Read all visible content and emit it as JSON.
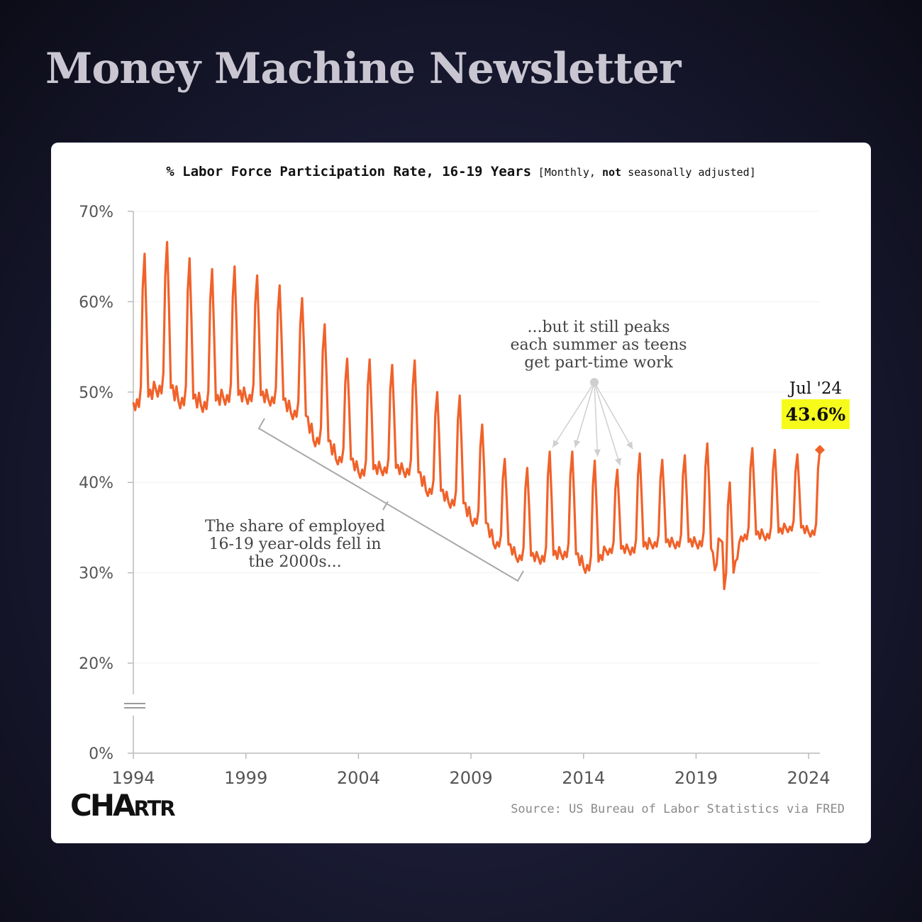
{
  "header": {
    "brand_title": "Money Machine Newsletter"
  },
  "chart_data": {
    "type": "line",
    "title": "% Labor Force Participation Rate, 16-19 Years",
    "subtitle_parts": {
      "open": "[Monthly, ",
      "bold": "not",
      "close": " seasonally adjusted]"
    },
    "xlabel": "",
    "ylabel": "",
    "x_ticks": [
      "1994",
      "1999",
      "2004",
      "2009",
      "2014",
      "2019",
      "2024"
    ],
    "y_ticks": [
      {
        "value": 0,
        "label": "0%"
      },
      {
        "value": 20,
        "label": "20%"
      },
      {
        "value": 30,
        "label": "30%"
      },
      {
        "value": 40,
        "label": "40%"
      },
      {
        "value": 50,
        "label": "50%"
      },
      {
        "value": 60,
        "label": "60%"
      },
      {
        "value": 70,
        "label": "70%"
      }
    ],
    "ylim": [
      0,
      70
    ],
    "y_axis_break": [
      0,
      20
    ],
    "xlim": [
      1994.0,
      2024.5
    ],
    "grid": true,
    "line_color": "#f0622a",
    "series": [
      {
        "name": "",
        "annual": [
          {
            "year": 1994,
            "base": 48.0,
            "summer": 65.3
          },
          {
            "year": 1995,
            "base": 49.5,
            "summer": 66.6
          },
          {
            "year": 1996,
            "base": 48.2,
            "summer": 64.8
          },
          {
            "year": 1997,
            "base": 47.8,
            "summer": 63.6
          },
          {
            "year": 1998,
            "base": 48.6,
            "summer": 63.9
          },
          {
            "year": 1999,
            "base": 48.7,
            "summer": 62.9
          },
          {
            "year": 2000,
            "base": 48.5,
            "summer": 61.8
          },
          {
            "year": 2001,
            "base": 47.0,
            "summer": 60.4
          },
          {
            "year": 2002,
            "base": 44.0,
            "summer": 57.5
          },
          {
            "year": 2003,
            "base": 42.0,
            "summer": 53.7
          },
          {
            "year": 2004,
            "base": 40.5,
            "summer": 53.6
          },
          {
            "year": 2005,
            "base": 40.8,
            "summer": 53.0
          },
          {
            "year": 2006,
            "base": 40.6,
            "summer": 53.5
          },
          {
            "year": 2007,
            "base": 38.5,
            "summer": 50.0
          },
          {
            "year": 2008,
            "base": 37.2,
            "summer": 49.6
          },
          {
            "year": 2009,
            "base": 35.2,
            "summer": 46.4
          },
          {
            "year": 2010,
            "base": 32.7,
            "summer": 42.6
          },
          {
            "year": 2011,
            "base": 31.2,
            "summer": 41.6
          },
          {
            "year": 2012,
            "base": 31.0,
            "summer": 43.4
          },
          {
            "year": 2013,
            "base": 31.5,
            "summer": 43.4
          },
          {
            "year": 2014,
            "base": 30.0,
            "summer": 42.4
          },
          {
            "year": 2015,
            "base": 32.0,
            "summer": 41.4
          },
          {
            "year": 2016,
            "base": 32.0,
            "summer": 43.2
          },
          {
            "year": 2017,
            "base": 32.7,
            "summer": 42.5
          },
          {
            "year": 2018,
            "base": 32.7,
            "summer": 43.0
          },
          {
            "year": 2019,
            "base": 32.7,
            "summer": 44.3
          },
          {
            "year": 2020,
            "base": 28.2,
            "summer": 40.0
          },
          {
            "year": 2021,
            "base": 33.5,
            "summer": 43.8
          },
          {
            "year": 2022,
            "base": 33.6,
            "summer": 43.6
          },
          {
            "year": 2023,
            "base": 34.5,
            "summer": 43.1
          },
          {
            "year": 2024,
            "base": 34.0,
            "summer": 43.6
          }
        ],
        "last_point": {
          "x": 2024.5,
          "y": 43.6
        }
      }
    ],
    "annotations": {
      "last_label": "Jul '24",
      "last_value": "43.6%",
      "highlight_color": "#f7fb1b",
      "decline_note": [
        "The share of employed",
        "16-19 year-olds fell in",
        "the 2000s..."
      ],
      "peaks_note": [
        "...but it still peaks",
        "each summer as teens",
        "get part-time work"
      ],
      "peak_arrow_targets": [
        2012,
        2013,
        2014,
        2015,
        2016
      ]
    }
  },
  "footer": {
    "logo_big": "CHA",
    "logo_small": "RTR",
    "source": "Source: US Bureau of Labor Statistics via FRED"
  }
}
